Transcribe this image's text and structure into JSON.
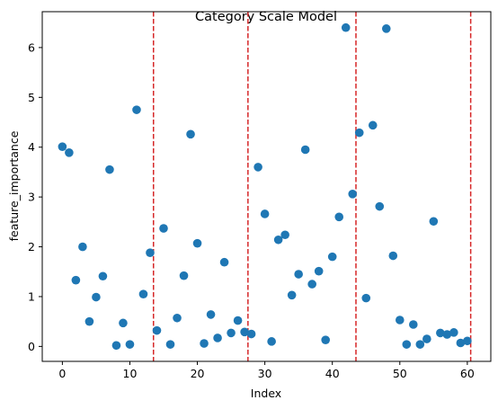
{
  "chart_data": {
    "type": "scatter",
    "title": "Category Scale Model",
    "xlabel": "Index",
    "ylabel": "feature_importance",
    "xlim": [
      -2.98,
      63.48
    ],
    "ylim": [
      -0.3,
      6.72
    ],
    "xticks": [
      0,
      10,
      20,
      30,
      40,
      50,
      60
    ],
    "yticks": [
      0,
      1,
      2,
      3,
      4,
      5,
      6
    ],
    "grid": false,
    "marker_color": "#1f77b4",
    "x": [
      0,
      1,
      2,
      3,
      4,
      5,
      6,
      7,
      8,
      9,
      10,
      11,
      12,
      13,
      14,
      15,
      16,
      17,
      18,
      19,
      20,
      21,
      22,
      23,
      24,
      25,
      26,
      27,
      28,
      29,
      30,
      31,
      32,
      33,
      34,
      35,
      36,
      37,
      38,
      39,
      40,
      41,
      42,
      43,
      44,
      45,
      46,
      47,
      48,
      49,
      50,
      51,
      52,
      53,
      54,
      55,
      56,
      57,
      58,
      59,
      60
    ],
    "y": [
      4.01,
      3.89,
      1.33,
      2.0,
      0.5,
      0.99,
      1.41,
      3.55,
      0.02,
      0.47,
      0.04,
      4.75,
      1.05,
      1.88,
      0.32,
      2.37,
      0.04,
      0.57,
      1.42,
      4.26,
      2.07,
      0.06,
      0.64,
      0.17,
      1.69,
      0.27,
      0.52,
      0.29,
      0.25,
      3.6,
      2.66,
      0.1,
      2.14,
      2.24,
      1.03,
      1.45,
      3.95,
      1.25,
      1.51,
      0.13,
      1.8,
      2.6,
      6.4,
      3.06,
      4.29,
      0.97,
      4.44,
      2.81,
      6.38,
      1.82,
      0.53,
      0.04,
      0.44,
      0.04,
      0.15,
      2.51,
      0.27,
      0.24,
      0.28,
      0.07,
      0.11
    ],
    "vlines": {
      "x": [
        13.5,
        27.5,
        43.5,
        60.5
      ],
      "color": "#d62728",
      "style": "dashed"
    }
  }
}
